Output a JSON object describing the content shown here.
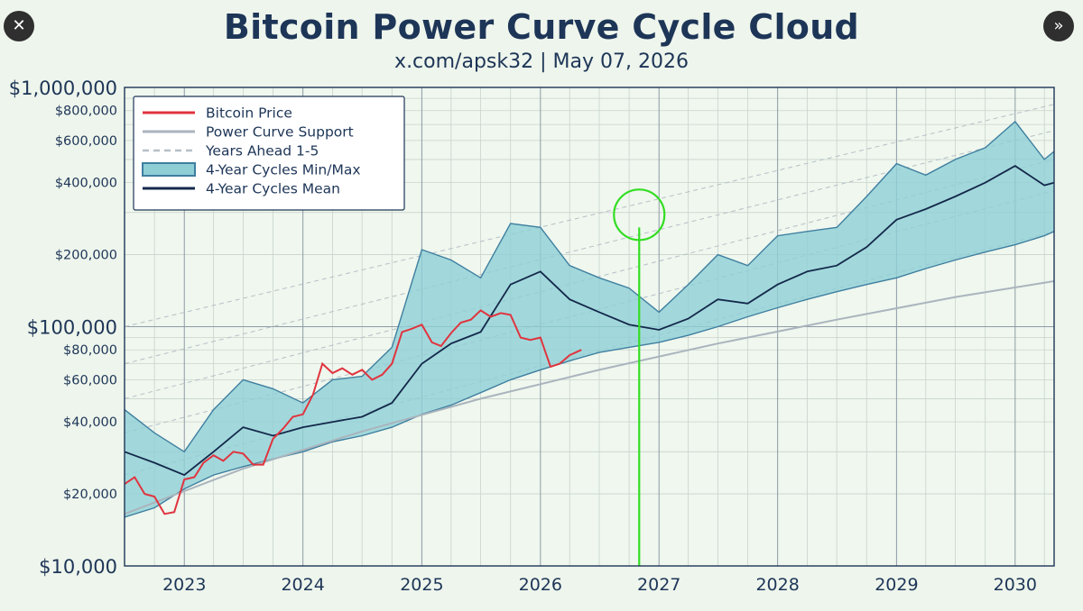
{
  "header": {
    "title": "Bitcoin Power Curve Cycle Cloud",
    "subtitle": "x.com/apsk32 | May 07, 2026"
  },
  "nav": {
    "close_glyph": "✕",
    "forward_glyph": "»"
  },
  "chart_data": {
    "type": "line",
    "title": "Bitcoin Power Curve Cycle Cloud",
    "subtitle": "x.com/apsk32 | May 07, 2026",
    "xlabel": "",
    "ylabel": "",
    "x_scale": "date",
    "y_scale": "log",
    "xlim": [
      "2022-07-01",
      "2030-05-01"
    ],
    "ylim": [
      10000,
      1000000
    ],
    "grid": true,
    "legend_position": "top-left",
    "x_ticks": [
      "2023",
      "2024",
      "2025",
      "2026",
      "2027",
      "2028",
      "2029",
      "2030"
    ],
    "y_ticks_major": [
      {
        "value": 10000,
        "label": "$10,000"
      },
      {
        "value": 100000,
        "label": "$100,000"
      },
      {
        "value": 1000000,
        "label": "$1,000,000"
      }
    ],
    "y_ticks_minor": [
      {
        "value": 20000,
        "label": "$20,000"
      },
      {
        "value": 40000,
        "label": "$40,000"
      },
      {
        "value": 60000,
        "label": "$60,000"
      },
      {
        "value": 80000,
        "label": "$80,000"
      },
      {
        "value": 200000,
        "label": "$200,000"
      },
      {
        "value": 400000,
        "label": "$400,000"
      },
      {
        "value": 600000,
        "label": "$600,000"
      },
      {
        "value": 800000,
        "label": "$800,000"
      }
    ],
    "colors": {
      "price": "#e0343f",
      "support": "#aab4bd",
      "years_ahead": "#b6bfc7",
      "cloud_fill": "#8ecfd6",
      "cloud_edge": "#3f7fa0",
      "mean": "#14284b",
      "marker": "#33dd22"
    },
    "legend": [
      {
        "name": "Bitcoin Price",
        "style": "price"
      },
      {
        "name": "Power Curve Support",
        "style": "support"
      },
      {
        "name": "Years Ahead 1-5",
        "style": "years_ahead"
      },
      {
        "name": "4-Year Cycles Min/Max",
        "style": "cloud"
      },
      {
        "name": "4-Year Cycles Mean",
        "style": "mean"
      }
    ],
    "series": [
      {
        "name": "Bitcoin Price",
        "x": [
          "2022-07-01",
          "2022-08-01",
          "2022-09-01",
          "2022-10-01",
          "2022-11-01",
          "2022-12-01",
          "2023-01-01",
          "2023-02-01",
          "2023-03-01",
          "2023-04-01",
          "2023-05-01",
          "2023-06-01",
          "2023-07-01",
          "2023-08-01",
          "2023-09-01",
          "2023-10-01",
          "2023-11-01",
          "2023-12-01",
          "2024-01-01",
          "2024-02-01",
          "2024-03-01",
          "2024-04-01",
          "2024-05-01",
          "2024-06-01",
          "2024-07-01",
          "2024-08-01",
          "2024-09-01",
          "2024-10-01",
          "2024-11-01",
          "2024-12-01",
          "2025-01-01",
          "2025-02-01",
          "2025-03-01",
          "2025-04-01",
          "2025-05-01",
          "2025-06-01",
          "2025-07-01",
          "2025-08-01",
          "2025-09-01",
          "2025-10-01",
          "2025-11-01",
          "2025-12-01",
          "2026-01-01",
          "2026-02-01",
          "2026-03-01",
          "2026-04-01",
          "2026-05-07"
        ],
        "y": [
          22000,
          23500,
          20000,
          19500,
          16500,
          16800,
          23000,
          23500,
          27000,
          29000,
          27500,
          30000,
          29500,
          26500,
          26500,
          34000,
          37500,
          42000,
          43000,
          52000,
          70000,
          64000,
          67000,
          63000,
          66000,
          60000,
          63000,
          70000,
          95000,
          98000,
          102000,
          86000,
          83000,
          94000,
          104000,
          107000,
          117000,
          110000,
          114000,
          112000,
          90000,
          88000,
          90000,
          68000,
          70000,
          76000,
          80000
        ]
      },
      {
        "name": "4-Year Cycles Mean",
        "x": [
          "2022-07-01",
          "2022-10-01",
          "2023-01-01",
          "2023-04-01",
          "2023-07-01",
          "2023-10-01",
          "2024-01-01",
          "2024-04-01",
          "2024-07-01",
          "2024-10-01",
          "2025-01-01",
          "2025-04-01",
          "2025-07-01",
          "2025-10-01",
          "2026-01-01",
          "2026-04-01",
          "2026-07-01",
          "2026-10-01",
          "2027-01-01",
          "2027-04-01",
          "2027-07-01",
          "2027-10-01",
          "2028-01-01",
          "2028-04-01",
          "2028-07-01",
          "2028-10-01",
          "2029-01-01",
          "2029-04-01",
          "2029-07-01",
          "2029-10-01",
          "2030-01-01",
          "2030-04-01",
          "2030-05-01"
        ],
        "y": [
          30000,
          27000,
          24000,
          30000,
          38000,
          35000,
          38000,
          40000,
          42000,
          48000,
          70000,
          85000,
          95000,
          150000,
          170000,
          130000,
          115000,
          102000,
          97000,
          108000,
          130000,
          125000,
          150000,
          170000,
          180000,
          215000,
          280000,
          310000,
          350000,
          400000,
          470000,
          390000,
          400000
        ]
      },
      {
        "name": "4-Year Cycles Max",
        "x": [
          "2022-07-01",
          "2022-10-01",
          "2023-01-01",
          "2023-04-01",
          "2023-07-01",
          "2023-10-01",
          "2024-01-01",
          "2024-04-01",
          "2024-07-01",
          "2024-10-01",
          "2025-01-01",
          "2025-04-01",
          "2025-07-01",
          "2025-10-01",
          "2026-01-01",
          "2026-04-01",
          "2026-07-01",
          "2026-10-01",
          "2027-01-01",
          "2027-04-01",
          "2027-07-01",
          "2027-10-01",
          "2028-01-01",
          "2028-04-01",
          "2028-07-01",
          "2028-10-01",
          "2029-01-01",
          "2029-04-01",
          "2029-07-01",
          "2029-10-01",
          "2030-01-01",
          "2030-04-01",
          "2030-05-01"
        ],
        "y": [
          45000,
          36000,
          30000,
          45000,
          60000,
          55000,
          48000,
          60000,
          62000,
          82000,
          210000,
          190000,
          160000,
          270000,
          260000,
          180000,
          160000,
          145000,
          115000,
          150000,
          200000,
          180000,
          240000,
          250000,
          260000,
          350000,
          480000,
          430000,
          500000,
          560000,
          720000,
          500000,
          540000
        ]
      },
      {
        "name": "4-Year Cycles Min",
        "x": [
          "2022-07-01",
          "2022-10-01",
          "2023-01-01",
          "2023-04-01",
          "2023-07-01",
          "2023-10-01",
          "2024-01-01",
          "2024-04-01",
          "2024-07-01",
          "2024-10-01",
          "2025-01-01",
          "2025-04-01",
          "2025-07-01",
          "2025-10-01",
          "2026-01-01",
          "2026-04-01",
          "2026-07-01",
          "2026-10-01",
          "2027-01-01",
          "2027-04-01",
          "2027-07-01",
          "2027-10-01",
          "2028-01-01",
          "2028-04-01",
          "2028-07-01",
          "2028-10-01",
          "2029-01-01",
          "2029-04-01",
          "2029-07-01",
          "2029-10-01",
          "2030-01-01",
          "2030-04-01",
          "2030-05-01"
        ],
        "y": [
          16000,
          17500,
          21000,
          24000,
          26000,
          28000,
          30000,
          33000,
          35000,
          38000,
          43000,
          47000,
          53000,
          60000,
          66000,
          72000,
          78000,
          82000,
          86000,
          92000,
          100000,
          110000,
          120000,
          130000,
          140000,
          150000,
          160000,
          175000,
          190000,
          205000,
          220000,
          240000,
          250000
        ]
      },
      {
        "name": "Power Curve Support",
        "x": [
          "2022-07-01",
          "2023-07-01",
          "2024-07-01",
          "2025-07-01",
          "2026-07-01",
          "2027-07-01",
          "2028-07-01",
          "2029-07-01",
          "2030-05-01"
        ],
        "y": [
          16500,
          25500,
          36500,
          50000,
          66000,
          85000,
          107000,
          133000,
          155000
        ]
      }
    ],
    "years_ahead_lines": [
      {
        "x": [
          "2022-07-01",
          "2030-05-01"
        ],
        "y": [
          24000,
          250000
        ]
      },
      {
        "x": [
          "2022-07-01",
          "2030-05-01"
        ],
        "y": [
          36000,
          370000
        ]
      },
      {
        "x": [
          "2022-07-01",
          "2030-05-01"
        ],
        "y": [
          50000,
          500000
        ]
      },
      {
        "x": [
          "2022-07-01",
          "2030-05-01"
        ],
        "y": [
          70000,
          660000
        ]
      },
      {
        "x": [
          "2022-07-01",
          "2030-05-01"
        ],
        "y": [
          100000,
          850000
        ]
      }
    ],
    "marker": {
      "date": "2026-11-01",
      "value": 260000
    }
  }
}
